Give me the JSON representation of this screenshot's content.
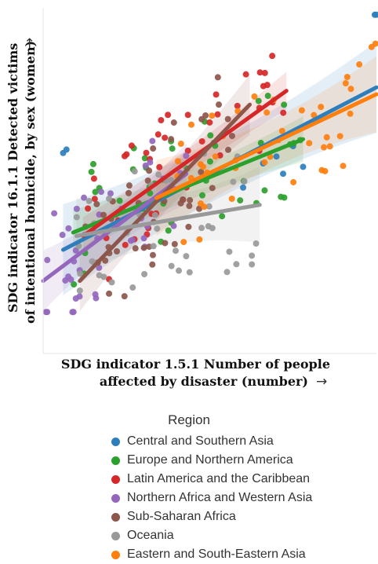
{
  "chart_data": {
    "type": "scatter",
    "xlabel_line1": "SDG indicator 1.5.1 Number of people",
    "xlabel_line2": "affected by disaster (number)",
    "x_arrow": "→",
    "ylabel_line1": "SDG indicator 16.1.1 Detected victims",
    "ylabel_line2": "of intentional homicide, by sex (women)",
    "y_arrow": "→",
    "legend_title": "Region",
    "xlim": [
      0,
      1
    ],
    "ylim": [
      0,
      1
    ],
    "grid": false,
    "legend_position": "bottom",
    "series": [
      {
        "name": "Central and Southern Asia",
        "color": "#2e7ebc",
        "fit": [
          [
            0.06,
            0.3
          ],
          [
            1.0,
            0.77
          ]
        ],
        "band": 0.06,
        "x": [
          0.06,
          0.07,
          0.995,
          1.0,
          0.78,
          0.7,
          0.66,
          0.72,
          0.6,
          0.75
        ],
        "y": [
          0.58,
          0.59,
          0.98,
          0.98,
          0.54,
          0.57,
          0.55,
          0.52,
          0.48,
          0.6
        ]
      },
      {
        "name": "Europe and Northern America",
        "color": "#2ca02c",
        "fit": [
          [
            0.09,
            0.35
          ],
          [
            0.78,
            0.62
          ]
        ],
        "band": 0.03
      },
      {
        "name": "Latin America and the Caribbean",
        "color": "#d62728",
        "fit": [
          [
            0.12,
            0.34
          ],
          [
            0.73,
            0.76
          ]
        ],
        "band": 0.025
      },
      {
        "name": "Northern Africa and Western Asia",
        "color": "#9467bd",
        "fit": [
          [
            0.0,
            0.21
          ],
          [
            0.43,
            0.52
          ]
        ],
        "band": 0.04
      },
      {
        "name": "Sub-Saharan Africa",
        "color": "#8c564b",
        "fit": [
          [
            0.11,
            0.21
          ],
          [
            0.62,
            0.72
          ]
        ],
        "band": 0.04
      },
      {
        "name": "Oceania",
        "color": "#999999",
        "fit": [
          [
            0.1,
            0.34
          ],
          [
            0.65,
            0.43
          ]
        ],
        "band": 0.05
      },
      {
        "name": "Eastern and South-Eastern Asia",
        "color": "#ff7f0e",
        "fit": [
          [
            0.34,
            0.45
          ],
          [
            1.0,
            0.75
          ]
        ],
        "band": 0.05
      }
    ]
  }
}
